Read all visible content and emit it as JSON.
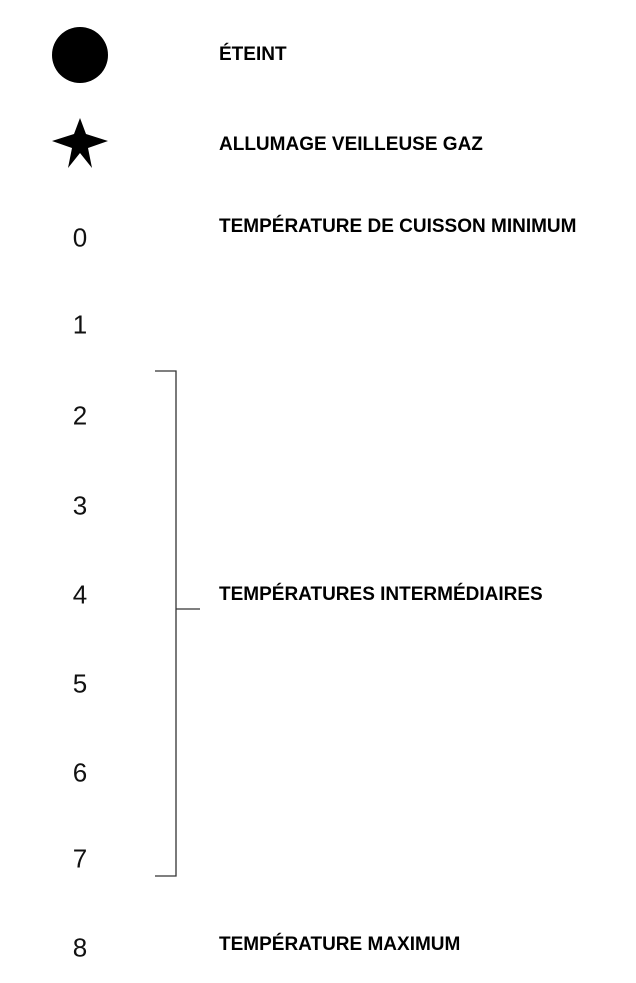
{
  "settings": [
    {
      "label": "ÉTEINT"
    },
    {
      "label": "ALLUMAGE VEILLEUSE GAZ"
    },
    {
      "number": "0",
      "label": "TEMPÉRATURE DE CUISSON MINIMUM"
    },
    {
      "number": "1"
    },
    {
      "number": "2"
    },
    {
      "number": "3"
    },
    {
      "number": "4"
    },
    {
      "number": "5"
    },
    {
      "number": "6"
    },
    {
      "number": "7"
    },
    {
      "number": "8",
      "label": "TEMPÉRATURE MAXIMUM"
    }
  ],
  "range_label": "TEMPÉRATURES INTERMÉDIAIRES"
}
